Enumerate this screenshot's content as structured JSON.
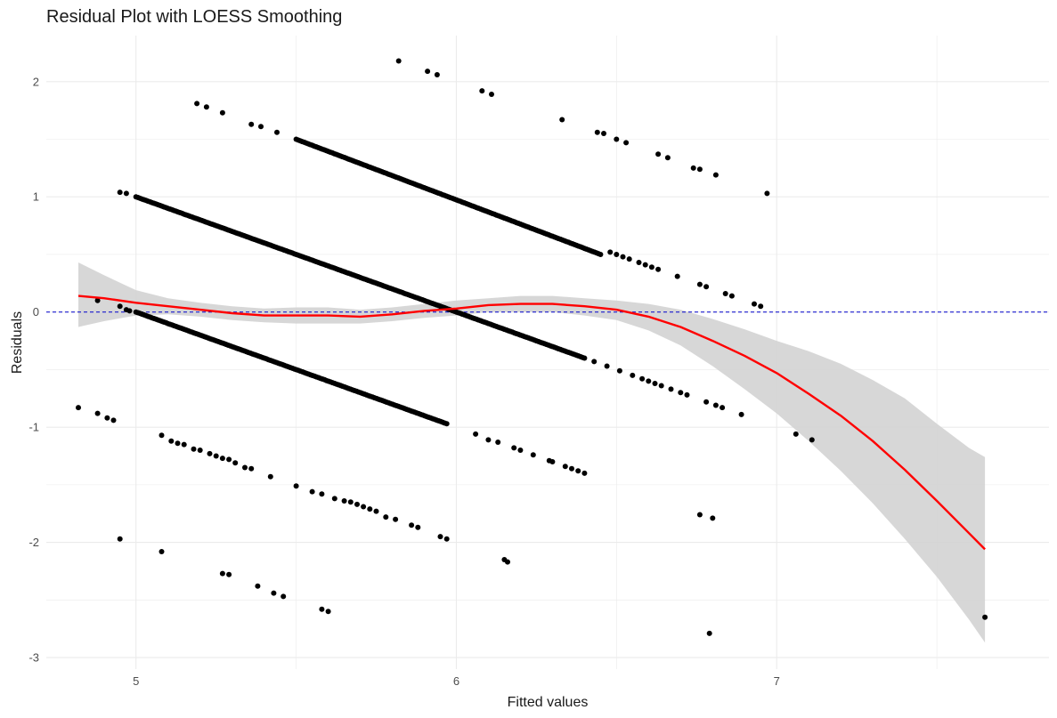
{
  "chart_data": {
    "type": "scatter",
    "title": "Residual Plot with LOESS Smoothing",
    "xlabel": "Fitted values",
    "ylabel": "Residuals",
    "xlim": [
      4.72,
      7.85
    ],
    "ylim": [
      -3.1,
      2.4
    ],
    "x_ticks": [
      5,
      6,
      7
    ],
    "y_ticks": [
      -3,
      -2,
      -1,
      0,
      1,
      2
    ],
    "grid": true,
    "reference_line": {
      "y": 0,
      "color": "#0000cc",
      "style": "dashed"
    },
    "colors": {
      "points": "#000000",
      "smooth": "#ff0000",
      "band": "#d3d3d3",
      "grid": "#ebebeb"
    },
    "dense_bands": [
      {
        "x_start": 5.0,
        "x_end": 5.95,
        "y_start": 1.0,
        "y_end": 0.05
      },
      {
        "x_start": 5.0,
        "x_end": 5.97,
        "y_start": 0.0,
        "y_end": -0.97
      },
      {
        "x_start": 5.5,
        "x_end": 6.45,
        "y_start": 1.5,
        "y_end": 0.5
      },
      {
        "x_start": 5.95,
        "x_end": 6.4,
        "y_start": 0.05,
        "y_end": -0.4
      }
    ],
    "points": [
      [
        4.82,
        -0.83
      ],
      [
        4.88,
        -0.88
      ],
      [
        4.91,
        -0.92
      ],
      [
        4.93,
        -0.94
      ],
      [
        4.95,
        -1.97
      ],
      [
        5.08,
        -2.08
      ],
      [
        4.95,
        1.04
      ],
      [
        4.97,
        1.03
      ],
      [
        4.88,
        0.1
      ],
      [
        4.95,
        0.05
      ],
      [
        4.97,
        0.02
      ],
      [
        4.98,
        0.01
      ],
      [
        5.08,
        -1.07
      ],
      [
        5.11,
        -1.12
      ],
      [
        5.13,
        -1.14
      ],
      [
        5.15,
        -1.15
      ],
      [
        5.18,
        -1.19
      ],
      [
        5.2,
        -1.2
      ],
      [
        5.23,
        -1.23
      ],
      [
        5.25,
        -1.25
      ],
      [
        5.27,
        -1.27
      ],
      [
        5.29,
        -1.28
      ],
      [
        5.31,
        -1.31
      ],
      [
        5.34,
        -1.35
      ],
      [
        5.36,
        -1.36
      ],
      [
        5.42,
        -1.43
      ],
      [
        5.5,
        -1.51
      ],
      [
        5.55,
        -1.56
      ],
      [
        5.58,
        -1.58
      ],
      [
        5.62,
        -1.62
      ],
      [
        5.65,
        -1.64
      ],
      [
        5.67,
        -1.65
      ],
      [
        5.69,
        -1.67
      ],
      [
        5.71,
        -1.69
      ],
      [
        5.73,
        -1.71
      ],
      [
        5.75,
        -1.73
      ],
      [
        5.78,
        -1.78
      ],
      [
        5.81,
        -1.8
      ],
      [
        5.86,
        -1.85
      ],
      [
        5.88,
        -1.87
      ],
      [
        5.95,
        -1.95
      ],
      [
        5.97,
        -1.97
      ],
      [
        5.27,
        -2.27
      ],
      [
        5.29,
        -2.28
      ],
      [
        5.38,
        -2.38
      ],
      [
        5.43,
        -2.44
      ],
      [
        5.46,
        -2.47
      ],
      [
        5.58,
        -2.58
      ],
      [
        5.6,
        -2.6
      ],
      [
        5.19,
        1.81
      ],
      [
        5.22,
        1.78
      ],
      [
        5.27,
        1.73
      ],
      [
        5.36,
        1.63
      ],
      [
        5.39,
        1.61
      ],
      [
        5.44,
        1.56
      ],
      [
        5.82,
        2.18
      ],
      [
        5.91,
        2.09
      ],
      [
        5.94,
        2.06
      ],
      [
        6.08,
        1.92
      ],
      [
        6.11,
        1.89
      ],
      [
        6.06,
        -1.06
      ],
      [
        6.1,
        -1.11
      ],
      [
        6.13,
        -1.13
      ],
      [
        6.18,
        -1.18
      ],
      [
        6.2,
        -1.2
      ],
      [
        6.24,
        -1.24
      ],
      [
        6.29,
        -1.29
      ],
      [
        6.3,
        -1.3
      ],
      [
        6.34,
        -1.34
      ],
      [
        6.36,
        -1.36
      ],
      [
        6.38,
        -1.38
      ],
      [
        6.4,
        -1.4
      ],
      [
        6.15,
        -2.15
      ],
      [
        6.16,
        -2.17
      ],
      [
        6.33,
        1.67
      ],
      [
        6.44,
        1.56
      ],
      [
        6.46,
        1.55
      ],
      [
        6.5,
        1.5
      ],
      [
        6.53,
        1.47
      ],
      [
        6.63,
        1.37
      ],
      [
        6.66,
        1.34
      ],
      [
        6.74,
        1.25
      ],
      [
        6.76,
        1.24
      ],
      [
        6.81,
        1.19
      ],
      [
        6.97,
        1.03
      ],
      [
        6.48,
        0.52
      ],
      [
        6.5,
        0.5
      ],
      [
        6.52,
        0.48
      ],
      [
        6.54,
        0.46
      ],
      [
        6.57,
        0.43
      ],
      [
        6.59,
        0.41
      ],
      [
        6.61,
        0.39
      ],
      [
        6.63,
        0.37
      ],
      [
        6.69,
        0.31
      ],
      [
        6.76,
        0.24
      ],
      [
        6.78,
        0.22
      ],
      [
        6.84,
        0.16
      ],
      [
        6.86,
        0.14
      ],
      [
        6.93,
        0.07
      ],
      [
        6.95,
        0.05
      ],
      [
        6.43,
        -0.43
      ],
      [
        6.47,
        -0.47
      ],
      [
        6.51,
        -0.51
      ],
      [
        6.55,
        -0.55
      ],
      [
        6.58,
        -0.58
      ],
      [
        6.6,
        -0.6
      ],
      [
        6.62,
        -0.62
      ],
      [
        6.64,
        -0.64
      ],
      [
        6.67,
        -0.67
      ],
      [
        6.7,
        -0.7
      ],
      [
        6.72,
        -0.72
      ],
      [
        6.78,
        -0.78
      ],
      [
        6.81,
        -0.81
      ],
      [
        6.83,
        -0.83
      ],
      [
        6.89,
        -0.89
      ],
      [
        7.06,
        -1.06
      ],
      [
        7.11,
        -1.11
      ],
      [
        6.76,
        -1.76
      ],
      [
        6.8,
        -1.79
      ],
      [
        6.79,
        -2.79
      ],
      [
        7.65,
        -2.65
      ]
    ],
    "smooth": {
      "x": [
        4.82,
        4.9,
        5.0,
        5.1,
        5.2,
        5.3,
        5.4,
        5.5,
        5.6,
        5.7,
        5.8,
        5.9,
        6.0,
        6.1,
        6.2,
        6.3,
        6.4,
        6.5,
        6.6,
        6.7,
        6.8,
        6.9,
        7.0,
        7.1,
        7.2,
        7.3,
        7.4,
        7.5,
        7.6,
        7.65
      ],
      "y": [
        0.14,
        0.12,
        0.08,
        0.05,
        0.02,
        -0.01,
        -0.03,
        -0.03,
        -0.03,
        -0.04,
        -0.02,
        0.01,
        0.03,
        0.06,
        0.07,
        0.07,
        0.05,
        0.02,
        -0.04,
        -0.13,
        -0.25,
        -0.38,
        -0.53,
        -0.71,
        -0.9,
        -1.12,
        -1.37,
        -1.64,
        -1.92,
        -2.06
      ],
      "lower": [
        -0.13,
        -0.08,
        -0.03,
        -0.02,
        -0.04,
        -0.07,
        -0.09,
        -0.1,
        -0.1,
        -0.1,
        -0.08,
        -0.05,
        -0.03,
        0.0,
        0.0,
        0.0,
        -0.03,
        -0.07,
        -0.16,
        -0.29,
        -0.47,
        -0.67,
        -0.88,
        -1.12,
        -1.38,
        -1.66,
        -1.97,
        -2.3,
        -2.67,
        -2.87
      ],
      "upper": [
        0.43,
        0.32,
        0.19,
        0.12,
        0.08,
        0.05,
        0.03,
        0.04,
        0.04,
        0.02,
        0.04,
        0.07,
        0.1,
        0.12,
        0.14,
        0.14,
        0.12,
        0.1,
        0.07,
        0.02,
        -0.06,
        -0.15,
        -0.25,
        -0.34,
        -0.45,
        -0.59,
        -0.75,
        -0.97,
        -1.18,
        -1.26
      ]
    }
  }
}
